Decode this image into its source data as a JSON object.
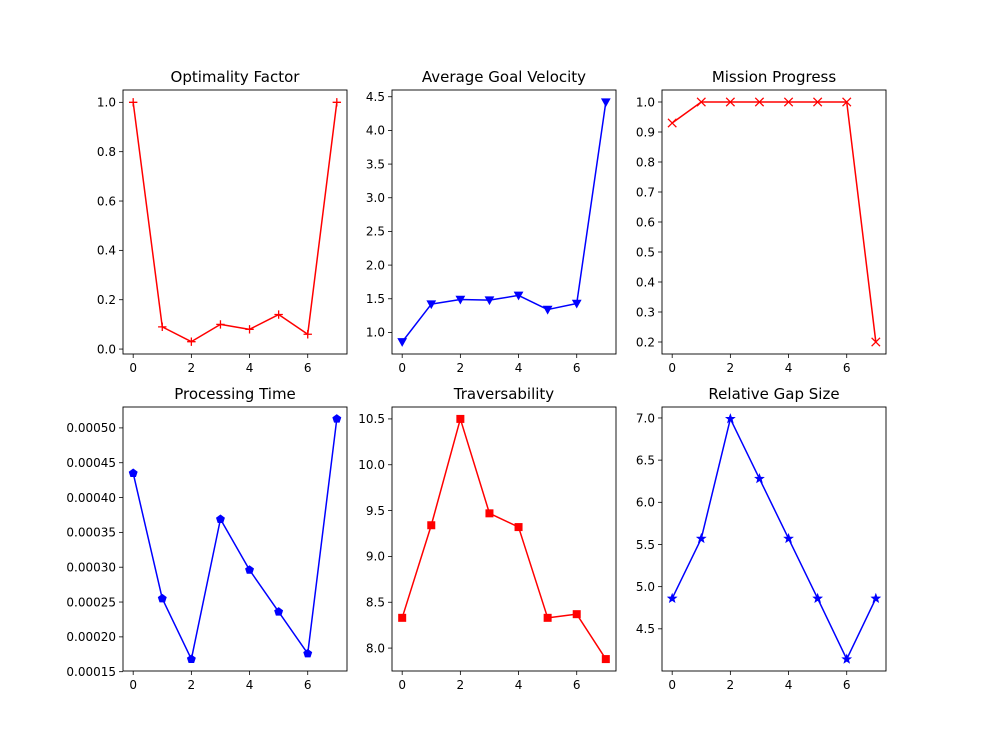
{
  "chart_data": [
    {
      "type": "line",
      "title": "Optimality Factor",
      "x": [
        0,
        1,
        2,
        3,
        4,
        5,
        6,
        7
      ],
      "series": [
        {
          "values": [
            1.0,
            0.09,
            0.03,
            0.1,
            0.08,
            0.14,
            0.06,
            1.0
          ],
          "color": "#ff0000",
          "marker": "plus"
        }
      ],
      "xlim": [
        -0.35,
        7.35
      ],
      "ylim": [
        -0.02,
        1.05
      ],
      "xticks": [
        "0",
        "2",
        "4",
        "6"
      ],
      "xtick_values": [
        0,
        2,
        4,
        6
      ],
      "yticks": [
        "0.0",
        "0.2",
        "0.4",
        "0.6",
        "0.8",
        "1.0"
      ],
      "ytick_values": [
        0,
        0.2,
        0.4,
        0.6,
        0.8,
        1.0
      ]
    },
    {
      "type": "line",
      "title": "Average Goal Velocity",
      "x": [
        0,
        1,
        2,
        3,
        4,
        5,
        6,
        7
      ],
      "series": [
        {
          "values": [
            0.86,
            1.42,
            1.49,
            1.48,
            1.55,
            1.34,
            1.43,
            4.42
          ],
          "color": "#0000ff",
          "marker": "triangle-down"
        }
      ],
      "xlim": [
        -0.35,
        7.35
      ],
      "ylim": [
        0.68,
        4.6
      ],
      "xticks": [
        "0",
        "2",
        "4",
        "6"
      ],
      "xtick_values": [
        0,
        2,
        4,
        6
      ],
      "yticks": [
        "1.0",
        "1.5",
        "2.0",
        "2.5",
        "3.0",
        "3.5",
        "4.0",
        "4.5"
      ],
      "ytick_values": [
        1.0,
        1.5,
        2.0,
        2.5,
        3.0,
        3.5,
        4.0,
        4.5
      ]
    },
    {
      "type": "line",
      "title": "Mission Progress",
      "x": [
        0,
        1,
        2,
        3,
        4,
        5,
        6,
        7
      ],
      "series": [
        {
          "values": [
            0.93,
            1.0,
            1.0,
            1.0,
            1.0,
            1.0,
            1.0,
            0.2
          ],
          "color": "#ff0000",
          "marker": "x"
        }
      ],
      "xlim": [
        -0.35,
        7.35
      ],
      "ylim": [
        0.16,
        1.04
      ],
      "xticks": [
        "0",
        "2",
        "4",
        "6"
      ],
      "xtick_values": [
        0,
        2,
        4,
        6
      ],
      "yticks": [
        "0.2",
        "0.3",
        "0.4",
        "0.5",
        "0.6",
        "0.7",
        "0.8",
        "0.9",
        "1.0"
      ],
      "ytick_values": [
        0.2,
        0.3,
        0.4,
        0.5,
        0.6,
        0.7,
        0.8,
        0.9,
        1.0
      ]
    },
    {
      "type": "line",
      "title": "Processing Time",
      "x": [
        0,
        1,
        2,
        3,
        4,
        5,
        6,
        7
      ],
      "series": [
        {
          "values": [
            0.000435,
            0.000255,
            0.000168,
            0.000369,
            0.000296,
            0.000236,
            0.000176,
            0.000513
          ],
          "color": "#0000ff",
          "marker": "pentagon"
        }
      ],
      "xlim": [
        -0.35,
        7.35
      ],
      "ylim": [
        0.000151,
        0.00053
      ],
      "xticks": [
        "0",
        "2",
        "4",
        "6"
      ],
      "xtick_values": [
        0,
        2,
        4,
        6
      ],
      "yticks": [
        "0.00015",
        "0.00020",
        "0.00025",
        "0.00030",
        "0.00035",
        "0.00040",
        "0.00045",
        "0.00050"
      ],
      "ytick_values": [
        0.00015,
        0.0002,
        0.00025,
        0.0003,
        0.00035,
        0.0004,
        0.00045,
        0.0005
      ]
    },
    {
      "type": "line",
      "title": "Traversability",
      "x": [
        0,
        1,
        2,
        3,
        4,
        5,
        6,
        7
      ],
      "series": [
        {
          "values": [
            8.33,
            9.34,
            10.5,
            9.47,
            9.32,
            8.33,
            8.37,
            7.88
          ],
          "color": "#ff0000",
          "marker": "square"
        }
      ],
      "xlim": [
        -0.35,
        7.35
      ],
      "ylim": [
        7.75,
        10.63
      ],
      "xticks": [
        "0",
        "2",
        "4",
        "6"
      ],
      "xtick_values": [
        0,
        2,
        4,
        6
      ],
      "yticks": [
        "8.0",
        "8.5",
        "9.0",
        "9.5",
        "10.0",
        "10.5"
      ],
      "ytick_values": [
        8.0,
        8.5,
        9.0,
        9.5,
        10.0,
        10.5
      ]
    },
    {
      "type": "line",
      "title": "Relative Gap Size",
      "x": [
        0,
        1,
        2,
        3,
        4,
        5,
        6,
        7
      ],
      "series": [
        {
          "values": [
            4.86,
            5.57,
            6.99,
            6.28,
            5.57,
            4.86,
            4.14,
            4.86
          ],
          "color": "#0000ff",
          "marker": "star"
        }
      ],
      "xlim": [
        -0.35,
        7.35
      ],
      "ylim": [
        4.0,
        7.13
      ],
      "xticks": [
        "0",
        "2",
        "4",
        "6"
      ],
      "xtick_values": [
        0,
        2,
        4,
        6
      ],
      "yticks": [
        "4.5",
        "5.0",
        "5.5",
        "6.0",
        "6.5",
        "7.0"
      ],
      "ytick_values": [
        4.5,
        5.0,
        5.5,
        6.0,
        6.5,
        7.0
      ]
    }
  ]
}
